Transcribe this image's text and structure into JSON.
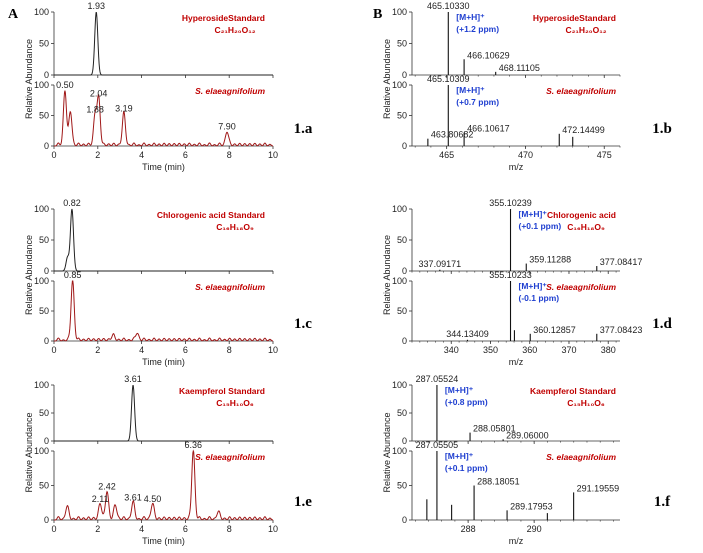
{
  "panel_letters": [
    "A",
    "B"
  ],
  "chart_data": [
    {
      "id": "1.a",
      "label": "1.a",
      "type": "line",
      "xlabel": "Time (min)",
      "ylabel": "Relative Abundance",
      "xlim": [
        0,
        10
      ],
      "xticks": [
        0,
        2,
        4,
        6,
        8,
        10
      ],
      "top": {
        "title": "HyperosideStandard",
        "formula": "C21H20O12",
        "ylim": [
          0,
          100
        ],
        "yticks": [
          0,
          50,
          100
        ],
        "color": "#222222",
        "peaks": [
          {
            "x": 1.93,
            "h": 100,
            "label": "1.93"
          }
        ]
      },
      "bottom": {
        "title": "S. elaeagnifolium",
        "ylim": [
          0,
          100
        ],
        "yticks": [
          0,
          50,
          100
        ],
        "color": "#a01818",
        "peaks": [
          {
            "x": 0.5,
            "h": 90,
            "label": "0.50"
          },
          {
            "x": 0.75,
            "h": 55,
            "label": ""
          },
          {
            "x": 1.88,
            "h": 50,
            "label": "1.88"
          },
          {
            "x": 2.04,
            "h": 76,
            "label": "2.04"
          },
          {
            "x": 3.19,
            "h": 52,
            "label": "3.19"
          },
          {
            "x": 7.9,
            "h": 22,
            "label": "7.90"
          }
        ]
      }
    },
    {
      "id": "1.b",
      "label": "1.b",
      "type": "bar",
      "xlabel": "m/z",
      "ylabel": "Relative Abundance",
      "xlim": [
        462.8,
        476
      ],
      "xticks": [
        465,
        470,
        475
      ],
      "top": {
        "title": "HyperosideStandard",
        "formula": "C21H20O12",
        "ion": "[M+H]+",
        "ppm": "(+1.2 ppm)",
        "ylim": [
          0,
          100
        ],
        "yticks": [
          0,
          50,
          100
        ],
        "peaks": [
          {
            "x": 465.1033,
            "h": 100,
            "label": "465.10330"
          },
          {
            "x": 466.10629,
            "h": 25,
            "label": "466.10629"
          },
          {
            "x": 468.11105,
            "h": 5,
            "label": "468.11105"
          }
        ]
      },
      "bottom": {
        "title": "S. elaeagnifolium",
        "ion": "[M+H]+",
        "ppm": "(+0.7 ppm)",
        "ylim": [
          0,
          100
        ],
        "yticks": [
          0,
          50,
          100
        ],
        "peaks": [
          {
            "x": 463.80682,
            "h": 12,
            "label": "463.80682"
          },
          {
            "x": 465.10309,
            "h": 100,
            "label": "465.10309"
          },
          {
            "x": 466.10617,
            "h": 22,
            "label": "466.10617"
          },
          {
            "x": 472.14499,
            "h": 20,
            "label": "472.14499"
          },
          {
            "x": 473.0,
            "h": 15,
            "label": ""
          }
        ]
      }
    },
    {
      "id": "1.c",
      "label": "1.c",
      "type": "line",
      "xlabel": "Time (min)",
      "ylabel": "Relative Abundance",
      "xlim": [
        0,
        10
      ],
      "xticks": [
        0,
        2,
        4,
        6,
        8,
        10
      ],
      "top": {
        "title": "Chlorogenic acid Standard",
        "formula": "C16H18O9",
        "ylim": [
          0,
          100
        ],
        "yticks": [
          0,
          50,
          100
        ],
        "color": "#222222",
        "peaks": [
          {
            "x": 0.82,
            "h": 100,
            "label": "0.82"
          },
          {
            "x": 0.62,
            "h": 22,
            "label": ""
          }
        ]
      },
      "bottom": {
        "title": "S. elaeagnifolium",
        "ylim": [
          0,
          100
        ],
        "yticks": [
          0,
          50,
          100
        ],
        "color": "#a01818",
        "peaks": [
          {
            "x": 0.85,
            "h": 100,
            "label": "0.85"
          },
          {
            "x": 2.7,
            "h": 8,
            "label": ""
          },
          {
            "x": 3.8,
            "h": 12,
            "label": ""
          }
        ]
      }
    },
    {
      "id": "1.d",
      "label": "1.d",
      "type": "bar",
      "xlabel": "m/z",
      "ylabel": "Relative Abundance",
      "xlim": [
        330,
        383
      ],
      "xticks": [
        340,
        350,
        360,
        370,
        380
      ],
      "top": {
        "title": "Chlorogenic acid",
        "formula": "C16H18O9",
        "ion": "[M+H]+",
        "ppm": "(+0.1 ppm)",
        "ylim": [
          0,
          100
        ],
        "yticks": [
          0,
          50,
          100
        ],
        "peaks": [
          {
            "x": 337.09171,
            "h": 2,
            "label": "337.09171"
          },
          {
            "x": 355.10239,
            "h": 100,
            "label": "355.10239"
          },
          {
            "x": 359.11288,
            "h": 12,
            "label": "359.11288"
          },
          {
            "x": 377.08417,
            "h": 8,
            "label": "377.08417"
          }
        ]
      },
      "bottom": {
        "title": "S. elaeagnifolium",
        "ion": "[M+H]+",
        "ppm": "(-0.1 ppm)",
        "ylim": [
          0,
          100
        ],
        "yticks": [
          0,
          50,
          100
        ],
        "peaks": [
          {
            "x": 344.13409,
            "h": 2,
            "label": "344.13409"
          },
          {
            "x": 355.10233,
            "h": 100,
            "label": "355.10233"
          },
          {
            "x": 356.1,
            "h": 18,
            "label": ""
          },
          {
            "x": 360.12857,
            "h": 12,
            "label": "360.12857"
          },
          {
            "x": 377.08423,
            "h": 12,
            "label": "377.08423"
          }
        ]
      }
    },
    {
      "id": "1.e",
      "label": "1.e",
      "type": "line",
      "xlabel": "Time (min)",
      "ylabel": "Relative Abundance",
      "xlim": [
        0,
        10
      ],
      "xticks": [
        0,
        2,
        4,
        6,
        8,
        10
      ],
      "top": {
        "title": "Kaempferol Standard",
        "formula": "C15H10O6",
        "ylim": [
          0,
          100
        ],
        "yticks": [
          0,
          50,
          100
        ],
        "color": "#222222",
        "peaks": [
          {
            "x": 3.61,
            "h": 100,
            "label": "3.61"
          }
        ]
      },
      "bottom": {
        "title": "S. elaeagnifolium",
        "ylim": [
          0,
          100
        ],
        "yticks": [
          0,
          50,
          100
        ],
        "color": "#a01818",
        "peaks": [
          {
            "x": 0.6,
            "h": 18,
            "label": ""
          },
          {
            "x": 2.11,
            "h": 22,
            "label": "2.11"
          },
          {
            "x": 2.42,
            "h": 40,
            "label": "2.42"
          },
          {
            "x": 2.8,
            "h": 20,
            "label": ""
          },
          {
            "x": 3.61,
            "h": 24,
            "label": "3.61"
          },
          {
            "x": 4.5,
            "h": 22,
            "label": "4.50"
          },
          {
            "x": 6.36,
            "h": 100,
            "label": "6.36"
          },
          {
            "x": 7.5,
            "h": 10,
            "label": ""
          }
        ]
      }
    },
    {
      "id": "1.f",
      "label": "1.f",
      "type": "bar",
      "xlabel": "m/z",
      "ylabel": "Relative Abundance",
      "xlim": [
        286.3,
        292.6
      ],
      "xticks": [
        288,
        290
      ],
      "top": {
        "title": "Kaempferol Standard",
        "formula": "C15H10O6",
        "ion": "[M+H]+",
        "ppm": "(+0.8 ppm)",
        "ylim": [
          0,
          100
        ],
        "yticks": [
          0,
          50,
          100
        ],
        "peaks": [
          {
            "x": 287.05524,
            "h": 100,
            "label": "287.05524"
          },
          {
            "x": 288.05801,
            "h": 15,
            "label": "288.05801"
          },
          {
            "x": 289.06,
            "h": 3,
            "label": "289.06000"
          }
        ]
      },
      "bottom": {
        "title": "S. elaeagnifolium",
        "ion": "[M+H]+",
        "ppm": "(+0.1 ppm)",
        "ylim": [
          0,
          100
        ],
        "yticks": [
          0,
          50,
          100
        ],
        "peaks": [
          {
            "x": 286.75,
            "h": 30,
            "label": ""
          },
          {
            "x": 287.05505,
            "h": 100,
            "label": "287.05505"
          },
          {
            "x": 287.5,
            "h": 22,
            "label": ""
          },
          {
            "x": 288.18051,
            "h": 50,
            "label": "288.18051"
          },
          {
            "x": 289.17953,
            "h": 14,
            "label": "289.17953"
          },
          {
            "x": 290.4,
            "h": 10,
            "label": ""
          },
          {
            "x": 291.19559,
            "h": 40,
            "label": "291.19559"
          }
        ]
      }
    }
  ]
}
